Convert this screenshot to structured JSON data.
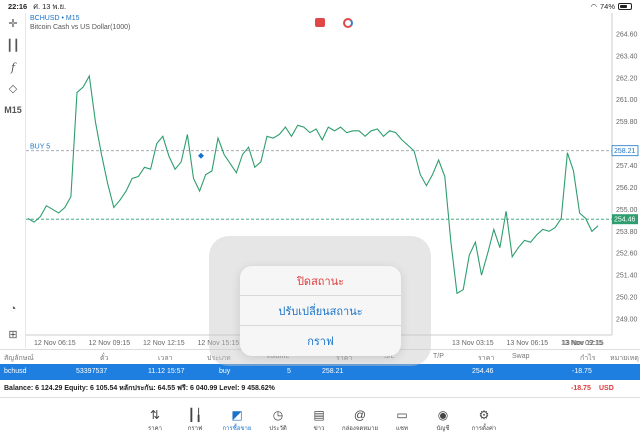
{
  "status_bar": {
    "time": "22:16",
    "date": "ศ. 13 พ.ย.",
    "battery": "74%",
    "battery_level": 0.74
  },
  "toolbar": {
    "timeframe": "M15",
    "tools": [
      "crosshair-icon",
      "candles-icon",
      "function-icon",
      "shapes-icon",
      "timeframe",
      "speed-icon",
      "add-icon"
    ]
  },
  "chart_header": {
    "symbol_line": "BCHUSD • M15",
    "description": "Bitcoin Cash vs US Dollar(1000)"
  },
  "chart_data": {
    "type": "line",
    "ylim": [
      248.12,
      265.64
    ],
    "yticks": [
      "264.60",
      "263.40",
      "262.20",
      "261.00",
      "259.80",
      "257.40",
      "256.20",
      "255.00",
      "253.80",
      "252.60",
      "251.40",
      "250.20",
      "249.00"
    ],
    "xticks": [
      "12 Nov 06:15",
      "12 Nov 09:15",
      "12 Nov 12:15",
      "12 Nov 15:15",
      "13 Nov 03:15",
      "13 Nov 06:15",
      "13 Nov 09:15",
      "13 Nov 12:15"
    ],
    "buy_level": {
      "label": "BUY 5",
      "value": 258.21,
      "tag": "258.21"
    },
    "current_price": {
      "value": 254.46,
      "tag": "254.46"
    },
    "series": [
      {
        "color": "#2e9e6e",
        "values": [
          254.5,
          254.3,
          254.6,
          255.2,
          255.0,
          254.8,
          255.1,
          255.7,
          261.4,
          261.7,
          262.3,
          259.8,
          258.0,
          256.4,
          255.1,
          255.5,
          256.0,
          256.7,
          256.8,
          257.3,
          257.2,
          258.6,
          259.0,
          257.9,
          257.2,
          257.6,
          259.1,
          256.7,
          256.0,
          256.9,
          257.1,
          258.9,
          258.0,
          257.5,
          257.0,
          258.0,
          258.4,
          257.3,
          257.6,
          259.0,
          258.9,
          259.1,
          259.5,
          259.0,
          259.6,
          259.5,
          259.2,
          259.4,
          258.8,
          259.5,
          259.3,
          259.5,
          259.2,
          259.3,
          259.3,
          259.0,
          259.3,
          259.4,
          259.0,
          259.3,
          259.2,
          258.8,
          258.5,
          258.2,
          256.9,
          256.3,
          256.9,
          257.7,
          256.8,
          253.2,
          250.4,
          250.6,
          252.5,
          253.2,
          251.4,
          252.6,
          253.9,
          252.9,
          254.9,
          252.4,
          252.9,
          253.3,
          253.2,
          253.6,
          253.9,
          253.8,
          254.0,
          254.5,
          258.1,
          257.1,
          254.8,
          254.5,
          253.8,
          254.1
        ]
      }
    ]
  },
  "positions": {
    "headers": [
      "สัญลักษณ์",
      "ตั๋ว",
      "เวลา",
      "ประเภท",
      "Volume",
      "ราคา",
      "S/L",
      "T/P",
      "ราคา",
      "Swap",
      "กำไร",
      "หมายเหตุ"
    ],
    "row": {
      "symbol": "bchusd",
      "ticket": "53397537",
      "time": "11.12 15:57",
      "type": "buy",
      "volume": "5",
      "open_price": "258.21",
      "price": "254.46",
      "profit": "-18.75"
    }
  },
  "account": {
    "summary": "Balance: 6 124.29 Equity: 6 105.54 หลักประกัน: 64.55 ฟรี: 6 040.99 Level: 9 458.62%",
    "profit": "-18.75",
    "currency": "USD"
  },
  "tabs": [
    {
      "label": "ราคา",
      "icon": "quotes-icon"
    },
    {
      "label": "กราฟ",
      "icon": "chart-icon"
    },
    {
      "label": "การซื้อขาย",
      "icon": "trade-icon",
      "active": true
    },
    {
      "label": "ประวัติ",
      "icon": "history-icon"
    },
    {
      "label": "ข่าว",
      "icon": "news-icon"
    },
    {
      "label": "กล่องจดหมาย",
      "icon": "mailbox-icon"
    },
    {
      "label": "แชท",
      "icon": "chat-icon"
    },
    {
      "label": "บัญชี",
      "icon": "account-icon"
    },
    {
      "label": "การตั้งค่า",
      "icon": "settings-icon"
    }
  ],
  "popup": {
    "close_position": "ปิดสถานะ",
    "modify_position": "ปรับเปลี่ยนสถานะ",
    "chart": "กราฟ"
  },
  "colors": {
    "accent": "#1e7fe0",
    "line": "#2e9e6e",
    "loss": "#e03b3b"
  }
}
